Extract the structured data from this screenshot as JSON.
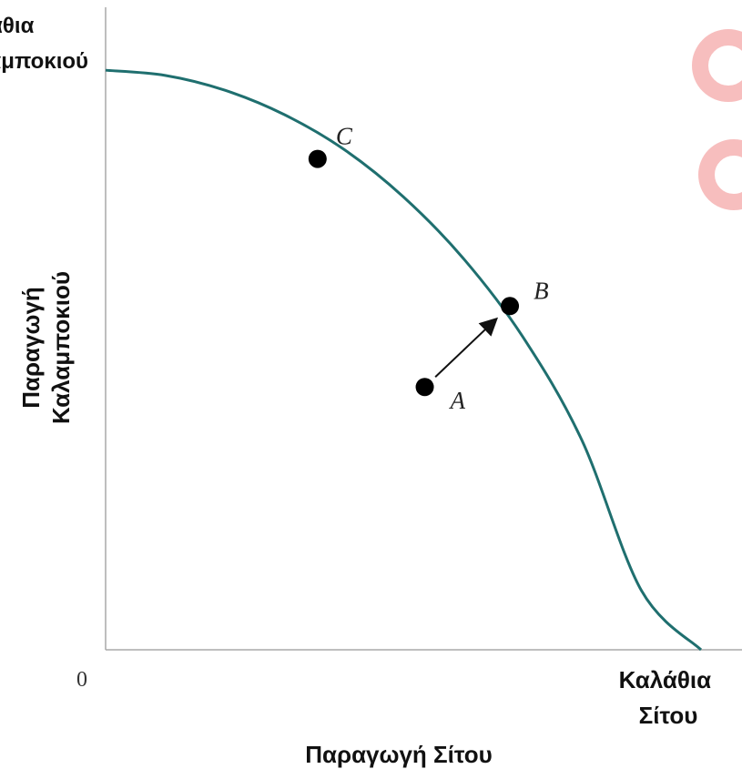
{
  "chart_data": {
    "type": "line",
    "title": "",
    "xlabel": "Παραγωγή Σίτου",
    "ylabel_lines": [
      "Παραγωγή",
      "Καλαμποκιού"
    ],
    "x_axis_end_label_lines": [
      "Καλάθια",
      "Σίτου"
    ],
    "y_axis_end_label_lines": [
      "Καλάθια",
      "Καλαμποκιού"
    ],
    "origin_label": "0",
    "grid": false,
    "legend": "none",
    "curve_color": "#1f6f6f",
    "xlim": [
      0,
      100
    ],
    "ylim": [
      0,
      100
    ],
    "series": [
      {
        "values": [
          [
            0,
            90.2
          ],
          [
            10,
            89.4
          ],
          [
            20,
            87.1
          ],
          [
            30,
            83.3
          ],
          [
            40,
            77.9
          ],
          [
            50,
            70.5
          ],
          [
            60,
            61.0
          ],
          [
            70,
            48.8
          ],
          [
            80,
            32.6
          ],
          [
            90,
            9.2
          ],
          [
            100,
            0
          ]
        ]
      }
    ],
    "points": [
      {
        "label": "C",
        "x": 35.6,
        "y": 76.4
      },
      {
        "label": "B",
        "x": 67.9,
        "y": 53.5
      },
      {
        "label": "A",
        "x": 53.6,
        "y": 40.9
      }
    ],
    "arrow": {
      "from": "A",
      "to": "B"
    }
  }
}
